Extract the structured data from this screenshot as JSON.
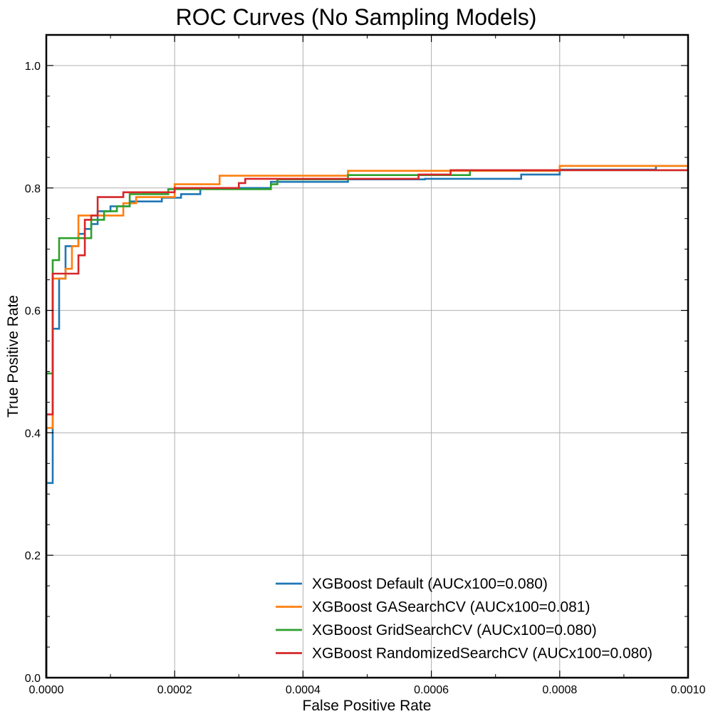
{
  "chart_data": {
    "type": "line",
    "title": "ROC Curves (No Sampling Models)",
    "xlabel": "False Positive Rate",
    "ylabel": "True Positive Rate",
    "xlim": [
      0,
      0.001
    ],
    "ylim": [
      0,
      1.05
    ],
    "xticks": [
      "0.0000",
      "0.0002",
      "0.0004",
      "0.0006",
      "0.0008",
      "0.0010"
    ],
    "yticks": [
      "0.0",
      "0.2",
      "0.4",
      "0.6",
      "0.8",
      "1.0"
    ],
    "grid": true,
    "legend_position": "lower-right",
    "series": [
      {
        "name": "XGBoost Default (AUCx100=0.080)",
        "color": "#1f77b4",
        "x": [
          0,
          0,
          1e-05,
          1e-05,
          2e-05,
          2e-05,
          3e-05,
          3e-05,
          5e-05,
          5e-05,
          6e-05,
          6e-05,
          7e-05,
          7e-05,
          8e-05,
          8e-05,
          0.0001,
          0.0001,
          0.00013,
          0.00013,
          0.00018,
          0.00018,
          0.00021,
          0.00021,
          0.00024,
          0.00024,
          0.00035,
          0.00035,
          0.00047,
          0.00047,
          0.00059,
          0.00059,
          0.00074,
          0.00074,
          0.0008,
          0.0008,
          0.00095,
          0.00095,
          0.001
        ],
        "y": [
          0,
          0.318,
          0.318,
          0.57,
          0.57,
          0.652,
          0.652,
          0.705,
          0.705,
          0.725,
          0.725,
          0.733,
          0.733,
          0.741,
          0.741,
          0.762,
          0.762,
          0.77,
          0.77,
          0.778,
          0.778,
          0.784,
          0.784,
          0.79,
          0.79,
          0.8,
          0.8,
          0.81,
          0.81,
          0.814,
          0.814,
          0.815,
          0.815,
          0.822,
          0.822,
          0.83,
          0.83,
          0.836,
          0.836
        ]
      },
      {
        "name": "XGBoost GASearchCV (AUCx100=0.081)",
        "color": "#ff7f0e",
        "x": [
          0,
          0,
          1e-05,
          1e-05,
          3e-05,
          3e-05,
          4e-05,
          4e-05,
          5e-05,
          5e-05,
          0.00012,
          0.00012,
          0.00014,
          0.00014,
          0.0002,
          0.0002,
          0.00027,
          0.00027,
          0.00047,
          0.00047,
          0.00062,
          0.00062,
          0.0008,
          0.0008,
          0.001
        ],
        "y": [
          0,
          0.408,
          0.408,
          0.652,
          0.652,
          0.668,
          0.668,
          0.705,
          0.705,
          0.755,
          0.755,
          0.775,
          0.775,
          0.785,
          0.785,
          0.806,
          0.806,
          0.82,
          0.82,
          0.828,
          0.828,
          0.828,
          0.828,
          0.836,
          0.836
        ]
      },
      {
        "name": "XGBoost GridSearchCV (AUCx100=0.080)",
        "color": "#2ca02c",
        "x": [
          0,
          0,
          1e-05,
          1e-05,
          2e-05,
          2e-05,
          7e-05,
          7e-05,
          9e-05,
          9e-05,
          0.00011,
          0.00011,
          0.00013,
          0.00013,
          0.00019,
          0.00019,
          0.00035,
          0.00035,
          0.00036,
          0.00036,
          0.00047,
          0.00047,
          0.00066,
          0.00066,
          0.001
        ],
        "y": [
          0,
          0.497,
          0.497,
          0.682,
          0.682,
          0.718,
          0.718,
          0.748,
          0.748,
          0.762,
          0.762,
          0.77,
          0.77,
          0.79,
          0.79,
          0.798,
          0.798,
          0.806,
          0.806,
          0.814,
          0.814,
          0.821,
          0.821,
          0.829,
          0.829
        ]
      },
      {
        "name": "XGBoost RandomizedSearchCV (AUCx100=0.080)",
        "color": "#d62728",
        "x": [
          0,
          0,
          1e-05,
          1e-05,
          5e-05,
          5e-05,
          6e-05,
          6e-05,
          7e-05,
          7e-05,
          8e-05,
          8e-05,
          0.00012,
          0.00012,
          0.0002,
          0.0002,
          0.0003,
          0.0003,
          0.00031,
          0.00031,
          0.00058,
          0.00058,
          0.00063,
          0.00063,
          0.001
        ],
        "y": [
          0,
          0.43,
          0.43,
          0.66,
          0.66,
          0.69,
          0.69,
          0.748,
          0.748,
          0.755,
          0.755,
          0.785,
          0.785,
          0.793,
          0.793,
          0.8,
          0.8,
          0.808,
          0.808,
          0.815,
          0.815,
          0.822,
          0.822,
          0.829,
          0.829
        ]
      }
    ]
  }
}
